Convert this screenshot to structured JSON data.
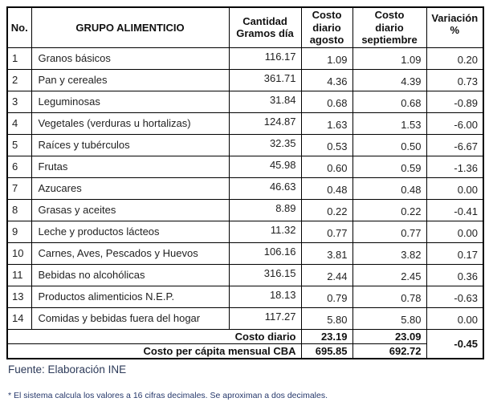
{
  "table": {
    "header": {
      "no": "No.",
      "grupo": "GRUPO ALIMENTICIO",
      "cantidad": "Cantidad\nGramos día",
      "agosto": "Costo\ndiario\nagosto",
      "septiembre": "Costo\ndiario\nseptiembre",
      "variacion": "Variación\n%"
    },
    "rows": [
      {
        "no": "1",
        "grupo": "Granos básicos",
        "cantidad": "116.17",
        "agosto": "1.09",
        "septiembre": "1.09",
        "variacion": "0.20"
      },
      {
        "no": "2",
        "grupo": "Pan y cereales",
        "cantidad": "361.71",
        "agosto": "4.36",
        "septiembre": "4.39",
        "variacion": "0.73"
      },
      {
        "no": "3",
        "grupo": "Leguminosas",
        "cantidad": "31.84",
        "agosto": "0.68",
        "septiembre": "0.68",
        "variacion": "-0.89"
      },
      {
        "no": "4",
        "grupo": "Vegetales (verduras u hortalizas)",
        "cantidad": "124.87",
        "agosto": "1.63",
        "septiembre": "1.53",
        "variacion": "-6.00"
      },
      {
        "no": "5",
        "grupo": "Raíces y tubérculos",
        "cantidad": "32.35",
        "agosto": "0.53",
        "septiembre": "0.50",
        "variacion": "-6.67"
      },
      {
        "no": "6",
        "grupo": "Frutas",
        "cantidad": "45.98",
        "agosto": "0.60",
        "septiembre": "0.59",
        "variacion": "-1.36"
      },
      {
        "no": "7",
        "grupo": "Azucares",
        "cantidad": "46.63",
        "agosto": "0.48",
        "septiembre": "0.48",
        "variacion": "0.00"
      },
      {
        "no": "8",
        "grupo": "Grasas y aceites",
        "cantidad": "8.89",
        "agosto": "0.22",
        "septiembre": "0.22",
        "variacion": "-0.41"
      },
      {
        "no": "9",
        "grupo": "Leche y productos lácteos",
        "cantidad": "11.32",
        "agosto": "0.77",
        "septiembre": "0.77",
        "variacion": "0.00"
      },
      {
        "no": "10",
        "grupo": "Carnes, Aves, Pescados y Huevos",
        "cantidad": "106.16",
        "agosto": "3.81",
        "septiembre": "3.82",
        "variacion": "0.17"
      },
      {
        "no": "11",
        "grupo": "Bebidas no alcohólicas",
        "cantidad": "316.15",
        "agosto": "2.44",
        "septiembre": "2.45",
        "variacion": "0.36"
      },
      {
        "no": "13",
        "grupo": "Productos alimenticios N.E.P.",
        "cantidad": "18.13",
        "agosto": "0.79",
        "septiembre": "0.78",
        "variacion": "-0.63"
      },
      {
        "no": "14",
        "grupo": "Comidas y bebidas fuera del hogar",
        "cantidad": "117.27",
        "agosto": "5.80",
        "septiembre": "5.80",
        "variacion": "0.00"
      }
    ],
    "summary_rows": [
      {
        "label": "Costo diario",
        "agosto": "23.19",
        "septiembre": "23.09"
      },
      {
        "label": "Costo per cápita mensual CBA",
        "agosto": "695.85",
        "septiembre": "692.72"
      }
    ],
    "summary_variacion": "-0.45"
  },
  "footer": {
    "fuente": "Fuente: Elaboración INE",
    "footnote": "* El sistema calcula los valores a 16 cifras decimales. Se aproximan a dos decimales."
  },
  "colors": {
    "border": "#000000",
    "table_text": "#1f1f1f",
    "source_text": "#2c3a59",
    "footnote_text": "#26386b"
  }
}
